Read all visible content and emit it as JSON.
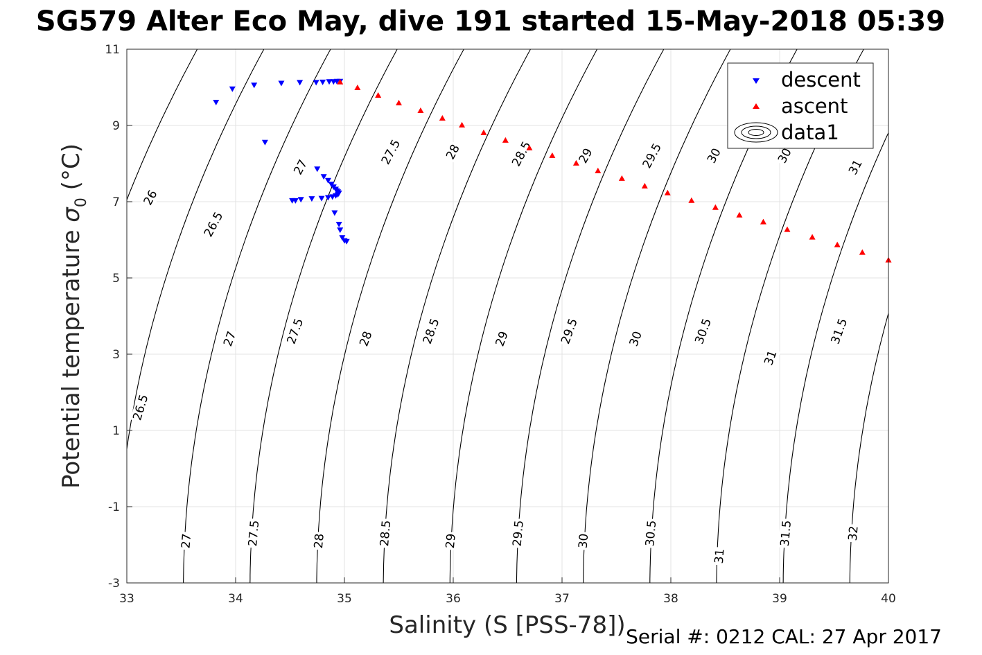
{
  "chart_data": {
    "type": "scatter",
    "title": "SG579 Alter Eco May, dive 191 started 15-May-2018 05:39",
    "xlabel": "Salinity (S [PSS-78])",
    "ylabel": "Potential temperature",
    "ylabel_symbol": "σ",
    "ylabel_subscript": "0",
    "ylabel_unit": "(°C)",
    "xlim": [
      33,
      40
    ],
    "ylim": [
      -3,
      11
    ],
    "xticks": [
      33,
      34,
      35,
      36,
      37,
      38,
      39,
      40
    ],
    "yticks": [
      -3,
      -1,
      1,
      3,
      5,
      7,
      9,
      11
    ],
    "grid": true,
    "legend_position": "top-right",
    "legend": [
      "descent",
      "ascent",
      "data1"
    ],
    "series": [
      {
        "name": "descent",
        "marker": "triangle-down",
        "color": "#0000ff",
        "x": [
          33.82,
          33.97,
          34.17,
          34.27,
          34.42,
          34.59,
          34.74,
          34.8,
          34.86,
          34.9,
          34.93,
          34.96,
          34.75,
          34.81,
          34.85,
          34.88,
          34.9,
          34.92,
          34.93,
          34.94,
          34.95,
          34.94,
          34.92,
          34.89,
          34.85,
          34.79,
          34.7,
          34.6,
          34.55,
          34.52,
          34.91,
          34.95,
          34.96,
          34.98,
          35.0,
          35.02
        ],
        "y": [
          9.6,
          9.95,
          10.05,
          8.55,
          10.1,
          10.12,
          10.12,
          10.13,
          10.14,
          10.14,
          10.15,
          10.15,
          7.85,
          7.65,
          7.55,
          7.45,
          7.38,
          7.32,
          7.28,
          7.25,
          7.22,
          7.18,
          7.15,
          7.12,
          7.1,
          7.08,
          7.07,
          7.05,
          7.02,
          7.02,
          6.7,
          6.4,
          6.25,
          6.05,
          5.97,
          5.95
        ]
      },
      {
        "name": "ascent",
        "marker": "triangle-up",
        "color": "#ff0000",
        "x": [
          34.96,
          35.12,
          35.31,
          35.5,
          35.7,
          35.9,
          36.08,
          36.28,
          36.48,
          36.7,
          36.91,
          37.13,
          37.33,
          37.55,
          37.76,
          37.97,
          38.19,
          38.41,
          38.63,
          38.85,
          39.07,
          39.3,
          39.53,
          39.76,
          40.0
        ],
        "y": [
          10.15,
          10.0,
          9.8,
          9.6,
          9.4,
          9.2,
          9.02,
          8.82,
          8.62,
          8.42,
          8.22,
          8.02,
          7.82,
          7.62,
          7.42,
          7.24,
          7.04,
          6.86,
          6.66,
          6.48,
          6.28,
          6.08,
          5.88,
          5.68,
          5.48
        ]
      },
      {
        "name": "data1",
        "type": "contour",
        "color": "#000000",
        "levels": [
          26,
          26.5,
          27,
          27.5,
          28,
          28.5,
          29,
          29.5,
          30,
          30.5,
          31,
          31.5,
          32
        ]
      }
    ],
    "contour_labels": [
      {
        "text": "26",
        "x": 33.22,
        "y": 7.1,
        "angle": -62
      },
      {
        "text": "26.5",
        "x": 33.8,
        "y": 6.4,
        "angle": -62
      },
      {
        "text": "27",
        "x": 34.6,
        "y": 7.9,
        "angle": -62
      },
      {
        "text": "27.5",
        "x": 35.43,
        "y": 8.3,
        "angle": -62
      },
      {
        "text": "28",
        "x": 36.0,
        "y": 8.3,
        "angle": -62
      },
      {
        "text": "28.5",
        "x": 36.63,
        "y": 8.25,
        "angle": -62
      },
      {
        "text": "29",
        "x": 37.22,
        "y": 8.2,
        "angle": -62
      },
      {
        "text": "29.5",
        "x": 37.83,
        "y": 8.2,
        "angle": -62
      },
      {
        "text": "30",
        "x": 38.4,
        "y": 8.2,
        "angle": -62
      },
      {
        "text": "30",
        "x": 39.05,
        "y": 8.2,
        "angle": -62
      },
      {
        "text": "31",
        "x": 39.7,
        "y": 7.9,
        "angle": -62
      },
      {
        "text": "26.5",
        "x": 33.13,
        "y": 1.6,
        "angle": -73
      },
      {
        "text": "27",
        "x": 33.95,
        "y": 3.4,
        "angle": -70
      },
      {
        "text": "27.5",
        "x": 34.55,
        "y": 3.6,
        "angle": -70
      },
      {
        "text": "28",
        "x": 35.2,
        "y": 3.4,
        "angle": -70
      },
      {
        "text": "28.5",
        "x": 35.8,
        "y": 3.6,
        "angle": -70
      },
      {
        "text": "29",
        "x": 36.45,
        "y": 3.4,
        "angle": -70
      },
      {
        "text": "29.5",
        "x": 37.07,
        "y": 3.6,
        "angle": -70
      },
      {
        "text": "30",
        "x": 37.68,
        "y": 3.4,
        "angle": -70
      },
      {
        "text": "30.5",
        "x": 38.3,
        "y": 3.6,
        "angle": -70
      },
      {
        "text": "31",
        "x": 38.92,
        "y": 2.9,
        "angle": -70
      },
      {
        "text": "31.5",
        "x": 39.55,
        "y": 3.6,
        "angle": -70
      },
      {
        "text": "27",
        "x": 33.55,
        "y": -1.9,
        "angle": -85
      },
      {
        "text": "27.5",
        "x": 34.17,
        "y": -1.7,
        "angle": -85
      },
      {
        "text": "28",
        "x": 34.77,
        "y": -1.9,
        "angle": -85
      },
      {
        "text": "28.5",
        "x": 35.38,
        "y": -1.7,
        "angle": -85
      },
      {
        "text": "29",
        "x": 35.98,
        "y": -1.9,
        "angle": -85
      },
      {
        "text": "29.5",
        "x": 36.6,
        "y": -1.7,
        "angle": -85
      },
      {
        "text": "30",
        "x": 37.2,
        "y": -1.9,
        "angle": -85
      },
      {
        "text": "30.5",
        "x": 37.82,
        "y": -1.7,
        "angle": -85
      },
      {
        "text": "31",
        "x": 38.45,
        "y": -2.3,
        "angle": -85
      },
      {
        "text": "31.5",
        "x": 39.06,
        "y": -1.7,
        "angle": -85
      },
      {
        "text": "32",
        "x": 39.68,
        "y": -1.7,
        "angle": -85
      }
    ],
    "footer": "Serial #: 0212  CAL: 27 Apr 2017"
  }
}
